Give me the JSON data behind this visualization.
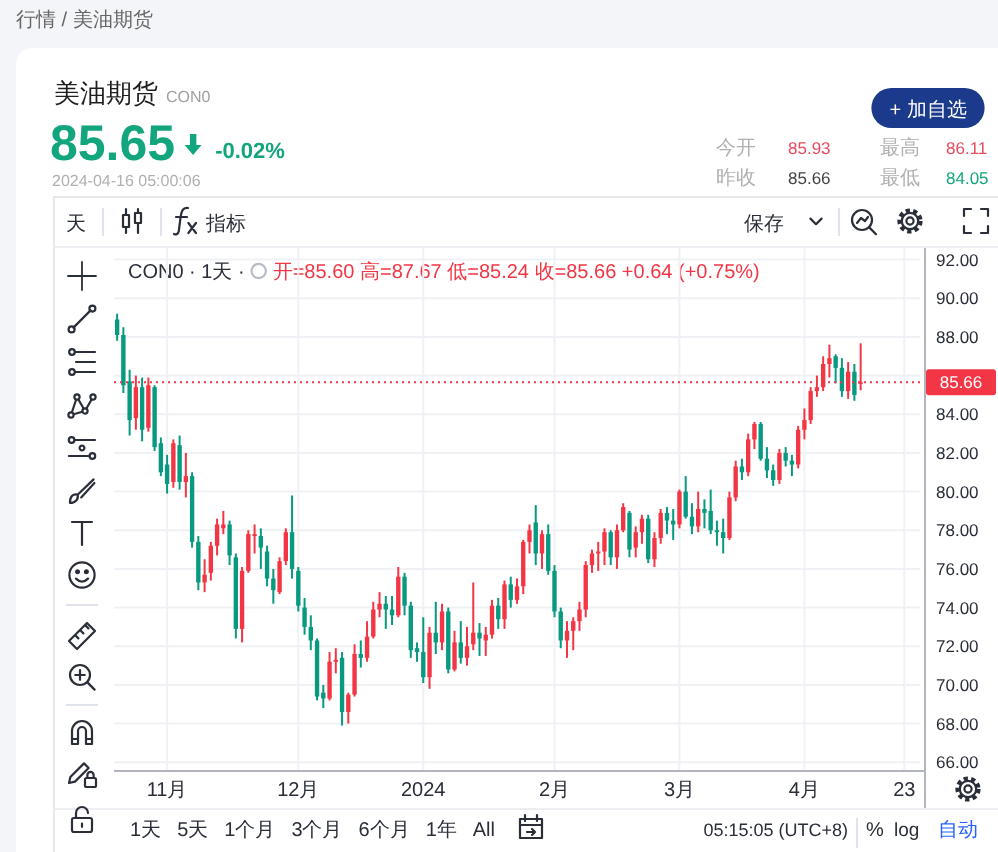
{
  "chart_data": {
    "type": "candlestick",
    "title": "美油期货",
    "subtitle": "CON0",
    "categories": [
      null,
      null,
      null,
      null,
      null,
      null,
      null,
      null,
      "11月",
      null,
      null,
      null,
      null,
      null,
      null,
      null,
      null,
      null,
      null,
      null,
      null,
      null,
      null,
      null,
      null,
      null,
      null,
      null,
      null,
      "12月",
      null,
      null,
      null,
      null,
      null,
      null,
      null,
      null,
      null,
      null,
      null,
      null,
      null,
      null,
      null,
      null,
      null,
      null,
      null,
      "2024",
      null,
      null,
      null,
      null,
      null,
      null,
      null,
      null,
      null,
      null,
      null,
      null,
      null,
      null,
      null,
      null,
      null,
      null,
      null,
      null,
      "2月",
      null,
      null,
      null,
      null,
      null,
      null,
      null,
      null,
      null,
      null,
      null,
      null,
      null,
      null,
      null,
      null,
      null,
      null,
      null,
      "3月",
      null,
      null,
      null,
      null,
      null,
      null,
      null,
      null,
      null,
      null,
      null,
      null,
      null,
      null,
      null,
      null,
      null,
      null,
      null,
      "4月",
      null,
      null,
      null,
      null,
      null,
      null,
      null,
      null,
      null,
      null,
      null,
      null,
      null,
      null,
      null,
      "23",
      null,
      null
    ],
    "ohlc": [
      [
        88.9,
        89.2,
        87.8,
        88.1
      ],
      [
        88.1,
        88.5,
        85.1,
        85.5
      ],
      [
        85.7,
        86.3,
        82.9,
        83.7
      ],
      [
        83.8,
        86.0,
        83.2,
        85.4
      ],
      [
        85.4,
        85.9,
        82.6,
        83.2
      ],
      [
        83.3,
        85.9,
        83.1,
        85.5
      ],
      [
        85.4,
        85.5,
        82.1,
        82.3
      ],
      [
        82.5,
        82.8,
        80.8,
        81.0
      ],
      [
        81.4,
        81.9,
        79.9,
        80.4
      ],
      [
        80.5,
        82.7,
        80.2,
        82.5
      ],
      [
        82.4,
        82.9,
        80.1,
        80.5
      ],
      [
        80.5,
        82.0,
        79.7,
        80.8
      ],
      [
        80.8,
        81.0,
        77.1,
        77.4
      ],
      [
        77.4,
        77.7,
        74.9,
        75.3
      ],
      [
        75.3,
        76.5,
        74.8,
        75.7
      ],
      [
        75.8,
        77.4,
        75.4,
        77.2
      ],
      [
        77.2,
        78.6,
        76.7,
        78.3
      ],
      [
        78.1,
        79.0,
        77.8,
        78.3
      ],
      [
        78.3,
        78.5,
        76.2,
        76.7
      ],
      [
        76.6,
        76.8,
        72.4,
        72.9
      ],
      [
        72.9,
        76.1,
        72.2,
        75.9
      ],
      [
        75.9,
        78.0,
        75.8,
        77.8
      ],
      [
        77.7,
        78.3,
        76.8,
        77.8
      ],
      [
        77.7,
        78.1,
        76.0,
        77.1
      ],
      [
        76.9,
        77.2,
        75.1,
        75.5
      ],
      [
        75.5,
        76.0,
        74.2,
        74.9
      ],
      [
        74.8,
        76.6,
        74.7,
        76.4
      ],
      [
        76.4,
        78.1,
        76.2,
        77.9
      ],
      [
        77.9,
        79.8,
        75.5,
        76.0
      ],
      [
        75.9,
        76.1,
        73.8,
        74.1
      ],
      [
        74.0,
        74.5,
        72.6,
        73.0
      ],
      [
        73.0,
        73.6,
        71.8,
        72.3
      ],
      [
        72.3,
        72.4,
        69.2,
        69.4
      ],
      [
        69.6,
        70.0,
        68.8,
        69.3
      ],
      [
        69.3,
        71.7,
        69.2,
        71.2
      ],
      [
        71.2,
        71.9,
        70.6,
        71.3
      ],
      [
        71.4,
        71.7,
        67.9,
        68.6
      ],
      [
        68.6,
        69.6,
        68.0,
        69.5
      ],
      [
        69.5,
        72.1,
        69.4,
        71.6
      ],
      [
        71.6,
        72.3,
        70.9,
        71.4
      ],
      [
        71.4,
        73.3,
        71.2,
        72.5
      ],
      [
        72.5,
        74.3,
        72.4,
        73.9
      ],
      [
        73.9,
        74.8,
        73.5,
        74.2
      ],
      [
        74.2,
        74.6,
        72.9,
        73.9
      ],
      [
        73.9,
        74.6,
        73.1,
        73.6
      ],
      [
        73.6,
        76.1,
        73.5,
        75.6
      ],
      [
        75.6,
        75.8,
        73.6,
        74.1
      ],
      [
        74.1,
        74.3,
        71.4,
        71.8
      ],
      [
        71.9,
        72.2,
        71.2,
        71.7
      ],
      [
        71.7,
        73.5,
        70.1,
        70.4
      ],
      [
        70.4,
        73.0,
        69.8,
        72.7
      ],
      [
        72.7,
        74.3,
        71.6,
        72.2
      ],
      [
        72.2,
        74.2,
        71.8,
        73.8
      ],
      [
        73.8,
        74.0,
        70.6,
        70.8
      ],
      [
        70.8,
        72.8,
        70.7,
        72.2
      ],
      [
        72.2,
        73.3,
        71.1,
        71.4
      ],
      [
        71.4,
        73.0,
        71.0,
        72.0
      ],
      [
        72.1,
        75.3,
        71.8,
        72.7
      ],
      [
        72.7,
        73.2,
        71.5,
        72.4
      ],
      [
        72.3,
        73.0,
        71.5,
        72.6
      ],
      [
        72.6,
        74.4,
        72.4,
        74.1
      ],
      [
        74.1,
        74.5,
        72.9,
        73.4
      ],
      [
        73.4,
        75.4,
        72.9,
        75.2
      ],
      [
        75.2,
        75.6,
        74.0,
        74.4
      ],
      [
        74.4,
        75.5,
        74.2,
        75.1
      ],
      [
        75.1,
        77.5,
        74.7,
        77.4
      ],
      [
        77.4,
        78.3,
        76.8,
        78.0
      ],
      [
        78.4,
        79.3,
        76.2,
        76.8
      ],
      [
        76.8,
        78.0,
        76.0,
        77.8
      ],
      [
        77.8,
        78.3,
        75.7,
        75.9
      ],
      [
        75.9,
        76.2,
        73.5,
        73.8
      ],
      [
        73.8,
        74.0,
        71.9,
        72.3
      ],
      [
        72.3,
        73.3,
        71.4,
        72.8
      ],
      [
        72.8,
        73.5,
        71.8,
        73.3
      ],
      [
        73.3,
        74.3,
        72.8,
        73.9
      ],
      [
        73.9,
        76.4,
        73.5,
        76.2
      ],
      [
        76.2,
        77.0,
        75.8,
        76.8
      ],
      [
        76.8,
        77.4,
        75.9,
        76.9
      ],
      [
        76.9,
        78.1,
        76.2,
        77.9
      ],
      [
        77.9,
        78.0,
        76.2,
        76.6
      ],
      [
        76.6,
        78.3,
        76.0,
        78.0
      ],
      [
        78.0,
        79.4,
        77.9,
        79.2
      ],
      [
        78.9,
        79.0,
        76.6,
        77.0
      ],
      [
        77.1,
        78.2,
        76.6,
        77.9
      ],
      [
        77.9,
        78.8,
        77.3,
        78.6
      ],
      [
        78.6,
        78.8,
        76.3,
        76.5
      ],
      [
        76.5,
        77.9,
        76.1,
        77.6
      ],
      [
        77.6,
        79.1,
        77.3,
        78.9
      ],
      [
        78.9,
        79.2,
        77.8,
        78.5
      ],
      [
        78.5,
        79.1,
        77.5,
        78.3
      ],
      [
        78.3,
        80.1,
        78.1,
        80.0
      ],
      [
        80.0,
        80.8,
        78.6,
        78.7
      ],
      [
        78.7,
        79.4,
        77.8,
        78.2
      ],
      [
        78.2,
        80.0,
        77.9,
        79.1
      ],
      [
        79.1,
        79.6,
        78.1,
        78.9
      ],
      [
        79.0,
        80.1,
        77.8,
        78.0
      ],
      [
        78.0,
        78.5,
        77.2,
        77.9
      ],
      [
        77.9,
        78.6,
        76.8,
        77.6
      ],
      [
        77.6,
        80.0,
        77.5,
        79.7
      ],
      [
        79.7,
        81.6,
        79.5,
        81.3
      ],
      [
        81.3,
        81.7,
        80.6,
        81.0
      ],
      [
        81.0,
        83.0,
        80.8,
        82.7
      ],
      [
        82.7,
        83.6,
        82.2,
        83.5
      ],
      [
        83.5,
        83.6,
        81.6,
        81.7
      ],
      [
        81.7,
        82.3,
        80.7,
        81.1
      ],
      [
        81.1,
        81.4,
        80.3,
        80.6
      ],
      [
        80.6,
        82.2,
        80.4,
        82.0
      ],
      [
        82.0,
        82.3,
        81.3,
        81.6
      ],
      [
        81.6,
        81.9,
        80.8,
        81.4
      ],
      [
        81.4,
        83.4,
        81.2,
        83.2
      ],
      [
        83.2,
        84.3,
        82.7,
        83.7
      ],
      [
        83.7,
        85.4,
        83.5,
        85.2
      ],
      [
        85.2,
        86.0,
        84.9,
        85.4
      ],
      [
        85.4,
        87.0,
        85.2,
        86.6
      ],
      [
        86.6,
        87.6,
        85.9,
        86.9
      ],
      [
        87.0,
        87.1,
        85.6,
        86.4
      ],
      [
        86.4,
        86.9,
        84.9,
        85.2
      ],
      [
        85.2,
        86.7,
        84.8,
        86.2
      ],
      [
        86.2,
        86.6,
        84.7,
        85.0
      ],
      [
        85.6,
        87.67,
        85.24,
        85.66
      ],
      null,
      null,
      null,
      null,
      null,
      null,
      null,
      null,
      null
    ],
    "colors": [
      "#089981",
      "#089981",
      "#089981",
      "#f23645",
      "#089981",
      "#f23645",
      "#089981",
      "#089981",
      "#089981",
      "#f23645",
      "#089981",
      "#f23645",
      "#089981",
      "#089981",
      "#f23645",
      "#f23645",
      "#f23645",
      "#f23645",
      "#089981",
      "#089981",
      "#f23645",
      "#f23645",
      "#f23645",
      "#089981",
      "#089981",
      "#089981",
      "#f23645",
      "#f23645",
      "#089981",
      "#089981",
      "#089981",
      "#089981",
      "#089981",
      "#089981",
      "#f23645",
      "#f23645",
      "#089981",
      "#f23645",
      "#f23645",
      "#089981",
      "#f23645",
      "#f23645",
      "#f23645",
      "#089981",
      "#089981",
      "#f23645",
      "#089981",
      "#089981",
      "#089981",
      "#089981",
      "#f23645",
      "#089981",
      "#f23645",
      "#089981",
      "#f23645",
      "#089981",
      "#f23645",
      "#f23645",
      "#089981",
      "#f23645",
      "#f23645",
      "#089981",
      "#f23645",
      "#089981",
      "#f23645",
      "#f23645",
      "#f23645",
      "#089981",
      "#f23645",
      "#089981",
      "#089981",
      "#089981",
      "#f23645",
      "#f23645",
      "#f23645",
      "#f23645",
      "#f23645",
      "#f23645",
      "#f23645",
      "#089981",
      "#f23645",
      "#f23645",
      "#089981",
      "#f23645",
      "#f23645",
      "#089981",
      "#f23645",
      "#f23645",
      "#089981",
      "#089981",
      "#f23645",
      "#089981",
      "#089981",
      "#f23645",
      "#089981",
      "#089981",
      "#089981",
      "#089981",
      "#f23645",
      "#f23645",
      "#089981",
      "#f23645",
      "#f23645",
      "#089981",
      "#089981",
      "#089981",
      "#f23645",
      "#089981",
      "#089981",
      "#f23645",
      "#f23645",
      "#f23645",
      "#f23645",
      "#f23645",
      "#f23645",
      "#089981",
      "#089981",
      "#f23645",
      "#089981",
      "#f23645",
      null,
      null,
      null,
      null,
      null,
      null,
      null,
      null,
      null
    ],
    "ylim": [
      65.6,
      92.6
    ],
    "yticks": [
      {
        "value": 66,
        "label": "66.00"
      },
      {
        "value": 68,
        "label": "68.00"
      },
      {
        "value": 70,
        "label": "70.00"
      },
      {
        "value": 72,
        "label": "72.00"
      },
      {
        "value": 74,
        "label": "74.00"
      },
      {
        "value": 76,
        "label": "76.00"
      },
      {
        "value": 78,
        "label": "78.00"
      },
      {
        "value": 80,
        "label": "80.00"
      },
      {
        "value": 82,
        "label": "82.00"
      },
      {
        "value": 84,
        "label": "84.00"
      },
      {
        "value": 86,
        "label": null
      },
      {
        "value": 88,
        "label": "88.00"
      },
      {
        "value": 90,
        "label": "90.00"
      },
      {
        "value": 92,
        "label": "92.00"
      }
    ],
    "grid": true,
    "ref_lines": [
      {
        "axis": "y",
        "value": 85.66,
        "label": "85.66",
        "color": "#f23645",
        "line_style": "dotted"
      }
    ],
    "annotations": [
      "行情 / 美油期货",
      "85.65",
      "-0.02%",
      "2024-04-16 05:00:06",
      "+ 加自选",
      "今开",
      "85.93",
      "最高",
      "86.11",
      "昨收",
      "85.66",
      "最低",
      "84.05",
      "天",
      "指标",
      "保存",
      "CON0 · 1天 ·",
      "开=85.60 高=87.67 低=85.24 收=85.66 +0.64 (+0.75%)",
      "1天",
      "5天",
      "1个月",
      "3个月",
      "6个月",
      "1年",
      "All",
      "05:15:05 (UTC+8)",
      "%",
      "log",
      "自动"
    ]
  }
}
